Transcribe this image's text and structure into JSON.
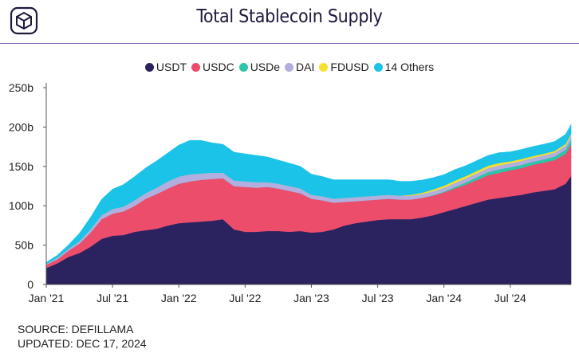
{
  "title": "Total Stablecoin Supply",
  "footer": {
    "source": "SOURCE: DEFILLAMA",
    "updated": "UPDATED: DEC 17, 2024"
  },
  "logo_icon": "cube-logo-icon",
  "chart_data": {
    "type": "area",
    "stacked": true,
    "title": "Total Stablecoin Supply",
    "xlabel": "",
    "ylabel": "",
    "ylim": [
      0,
      250
    ],
    "y_ticks": [
      0,
      50,
      100,
      150,
      200,
      250
    ],
    "y_tick_labels": [
      "0",
      "50b",
      "100b",
      "150b",
      "200b",
      "250b"
    ],
    "x_tick_labels": [
      "Jan '21",
      "Jul '21",
      "Jan '22",
      "Jul '22",
      "Jan '23",
      "Jul '23",
      "Jan '24",
      "Jul '24"
    ],
    "x_tick_positions": [
      0,
      6,
      12,
      18,
      24,
      30,
      36,
      42
    ],
    "x_domain": [
      0,
      47.5
    ],
    "legend_position": "top-center",
    "grid": false,
    "x": [
      0,
      1,
      2,
      3,
      4,
      5,
      6,
      7,
      8,
      9,
      10,
      11,
      12,
      13,
      14,
      15,
      16,
      17,
      18,
      19,
      20,
      21,
      22,
      23,
      24,
      25,
      26,
      27,
      28,
      29,
      30,
      31,
      32,
      33,
      34,
      35,
      36,
      37,
      38,
      39,
      40,
      41,
      42,
      43,
      44,
      45,
      46,
      47,
      47.5
    ],
    "series": [
      {
        "name": "USDT",
        "color": "#2b2360",
        "values": [
          21,
          27,
          35,
          40,
          48,
          58,
          62,
          63,
          67,
          69,
          71,
          75,
          78,
          79,
          80,
          81,
          83,
          70,
          67,
          67,
          68,
          68,
          67,
          68,
          66,
          67,
          70,
          75,
          78,
          80,
          82,
          83,
          83,
          83,
          85,
          88,
          92,
          96,
          100,
          104,
          108,
          110,
          112,
          114,
          117,
          119,
          121,
          128,
          138
        ]
      },
      {
        "name": "USDC",
        "color": "#eb4d6b",
        "values": [
          4,
          5,
          8,
          12,
          18,
          25,
          28,
          30,
          33,
          40,
          44,
          47,
          50,
          52,
          53,
          53,
          52,
          55,
          57,
          56,
          56,
          54,
          52,
          48,
          43,
          40,
          34,
          30,
          28,
          27,
          26,
          26,
          25,
          25,
          25,
          25,
          25,
          26,
          27,
          29,
          31,
          32,
          33,
          34,
          35,
          36,
          37,
          38,
          40
        ]
      },
      {
        "name": "USDe",
        "color": "#2ec4a9",
        "values": [
          0,
          0,
          0,
          0,
          0,
          0,
          0,
          0,
          0,
          0,
          0,
          0,
          0,
          0,
          0,
          0,
          0,
          0,
          0,
          0,
          0,
          0,
          0,
          0,
          0,
          0,
          0,
          0,
          0,
          0,
          0,
          0,
          0,
          0,
          0,
          0.5,
          1,
          2,
          3,
          3.5,
          4,
          4.5,
          4,
          4,
          4,
          4,
          4.5,
          5.5,
          6
        ]
      },
      {
        "name": "DAI",
        "color": "#b3aee0",
        "values": [
          1,
          2,
          2,
          3,
          4,
          5,
          6,
          6,
          7,
          7,
          8,
          9,
          9,
          9,
          8,
          8,
          7,
          7,
          7,
          7,
          6,
          6,
          6,
          6,
          5,
          5,
          5,
          5,
          5,
          5,
          5,
          5,
          5,
          5,
          5,
          5,
          5,
          5,
          5,
          5,
          5,
          5,
          5,
          5,
          5,
          5,
          5,
          5,
          5
        ]
      },
      {
        "name": "FDUSD",
        "color": "#f5e12d",
        "values": [
          0,
          0,
          0,
          0,
          0,
          0,
          0,
          0,
          0,
          0,
          0,
          0,
          0,
          0,
          0,
          0,
          0,
          0,
          0,
          0,
          0,
          0,
          0,
          0,
          0,
          0,
          0,
          0,
          0,
          0,
          0,
          0,
          0,
          1,
          1.5,
          2,
          2.5,
          3,
          3,
          3,
          3,
          3,
          2.5,
          2.5,
          2,
          2,
          2,
          2,
          2
        ]
      },
      {
        "name": "14 Others",
        "color": "#1cc3e8",
        "values": [
          2,
          3,
          5,
          10,
          15,
          20,
          25,
          28,
          30,
          32,
          34,
          36,
          40,
          43,
          42,
          38,
          36,
          36,
          35,
          34,
          32,
          30,
          29,
          28,
          26,
          25,
          24,
          23,
          22,
          21,
          20,
          19,
          18,
          17,
          16,
          15,
          14,
          14,
          13,
          13,
          13,
          13,
          12,
          12,
          12,
          12,
          12,
          12,
          12
        ]
      }
    ]
  }
}
